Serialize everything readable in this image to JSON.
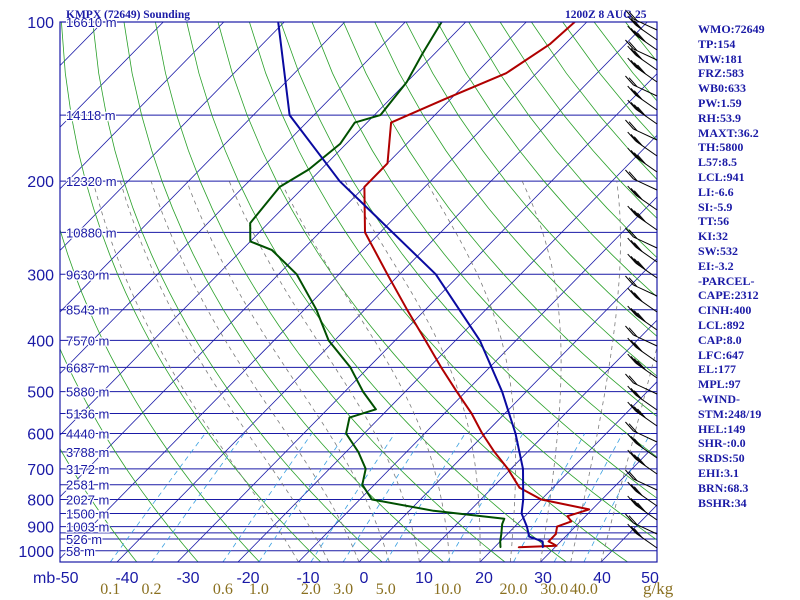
{
  "header": {
    "station": "KMPX (72649) Sounding",
    "time": "1200Z  8 AUG 25"
  },
  "stats": [
    "WMO:72649",
    "TP:154",
    "MW:181",
    "FRZ:583",
    "WB0:633",
    "PW:1.59",
    "RH:53.9",
    "MAXT:36.2",
    "TH:5800",
    "L57:8.5",
    "LCL:941",
    "LI:-6.6",
    "SI:-5.9",
    "TT:56",
    "KI:32",
    "SW:532",
    "EI:-3.2",
    "-PARCEL-",
    "CAPE:2312",
    "CINH:400",
    "LCL:892",
    "CAP:8.0",
    "LFC:647",
    "EL:177",
    "MPL:97",
    "-WIND-",
    "STM:248/19",
    "HEL:149",
    "SHR-:0.0",
    "SRDS:50",
    "EHI:3.1",
    "BRN:68.3",
    "BSHR:34"
  ],
  "colors": {
    "frame": "#1a1aa6",
    "isobar": "#1a1aa6",
    "isotherm": "#1a1aa6",
    "dry_adiabat": "#2aa02a",
    "moist_adiabat": "#7a7a7a",
    "mixing_ratio": "#3aa0e0",
    "temperature": "#b00000",
    "dewpoint": "#005000",
    "parcel": "#0a0aa0",
    "wind": "#000000",
    "axis_text": "#1a1aa6",
    "mixing_text": "#8a7020"
  },
  "chart_data": {
    "type": "line",
    "title": "KMPX (72649) Sounding",
    "subtitle": "1200Z  8 AUG 25",
    "xlabel": "",
    "ylabel": "mb",
    "y_log_scale": true,
    "xlim": [
      -50,
      50
    ],
    "ylim": [
      1050,
      100
    ],
    "y_ticks": [
      100,
      200,
      300,
      400,
      500,
      600,
      700,
      800,
      900,
      1000
    ],
    "x_ticks": [
      -50,
      -40,
      -30,
      -20,
      -10,
      0,
      10,
      20,
      30,
      40,
      50
    ],
    "x_tick_labels": [
      "-50",
      "-40",
      "-30",
      "-20",
      "-10",
      "0",
      "10",
      "20",
      "30",
      "40",
      "50"
    ],
    "mixing_ratio_unit": "g/kg",
    "mixing_ratio_labels": [
      "0.1",
      "0.2",
      "0.6",
      "1.0",
      "2.0",
      "3.0",
      "5.0",
      "10.0",
      "20.0",
      "30.0",
      "40.0"
    ],
    "isobar_pressures": [
      100,
      150,
      200,
      250,
      300,
      350,
      400,
      450,
      500,
      550,
      600,
      650,
      700,
      750,
      800,
      850,
      900,
      925,
      950,
      1000
    ],
    "height_labels": [
      {
        "p": 100,
        "label": "16610 m"
      },
      {
        "p": 150,
        "label": "14118 m"
      },
      {
        "p": 200,
        "label": "12320 m"
      },
      {
        "p": 250,
        "label": "10880 m"
      },
      {
        "p": 300,
        "label": "9630 m"
      },
      {
        "p": 350,
        "label": "8543 m"
      },
      {
        "p": 400,
        "label": "7570 m"
      },
      {
        "p": 450,
        "label": "6687 m"
      },
      {
        "p": 500,
        "label": "5880 m"
      },
      {
        "p": 550,
        "label": "5136 m"
      },
      {
        "p": 600,
        "label": "4440 m"
      },
      {
        "p": 650,
        "label": "3788 m"
      },
      {
        "p": 700,
        "label": "3172 m"
      },
      {
        "p": 750,
        "label": "2581 m"
      },
      {
        "p": 800,
        "label": "2027 m"
      },
      {
        "p": 850,
        "label": "1500 m"
      },
      {
        "p": 900,
        "label": "1003 m"
      },
      {
        "p": 950,
        "label": "526 m"
      },
      {
        "p": 1000,
        "label": "58 m"
      }
    ],
    "series": [
      {
        "name": "",
        "key": "temperature",
        "points": [
          {
            "p": 985,
            "t": 24.0
          },
          {
            "p": 978,
            "t": 30.0
          },
          {
            "p": 960,
            "t": 28.0
          },
          {
            "p": 930,
            "t": 28.0
          },
          {
            "p": 900,
            "t": 27.0
          },
          {
            "p": 880,
            "t": 28.5
          },
          {
            "p": 860,
            "t": 27.0
          },
          {
            "p": 835,
            "t": 29.5
          },
          {
            "p": 800,
            "t": 20.0
          },
          {
            "p": 760,
            "t": 14.5
          },
          {
            "p": 700,
            "t": 9.5
          },
          {
            "p": 650,
            "t": 4.5
          },
          {
            "p": 600,
            "t": -0.5
          },
          {
            "p": 550,
            "t": -5.5
          },
          {
            "p": 500,
            "t": -11.5
          },
          {
            "p": 450,
            "t": -18.0
          },
          {
            "p": 400,
            "t": -25.0
          },
          {
            "p": 350,
            "t": -33.0
          },
          {
            "p": 300,
            "t": -42.0
          },
          {
            "p": 250,
            "t": -52.5
          },
          {
            "p": 205,
            "t": -60.0
          },
          {
            "p": 185,
            "t": -60.0
          },
          {
            "p": 155,
            "t": -66.0
          },
          {
            "p": 140,
            "t": -61.0
          },
          {
            "p": 125,
            "t": -55.0
          },
          {
            "p": 110,
            "t": -52.5
          },
          {
            "p": 100,
            "t": -52.0
          }
        ]
      },
      {
        "name": "",
        "key": "dewpoint",
        "points": [
          {
            "p": 985,
            "t": 21.0
          },
          {
            "p": 960,
            "t": 20.0
          },
          {
            "p": 930,
            "t": 19.0
          },
          {
            "p": 890,
            "t": 17.5
          },
          {
            "p": 870,
            "t": 17.0
          },
          {
            "p": 840,
            "t": 4.0
          },
          {
            "p": 800,
            "t": -8.0
          },
          {
            "p": 750,
            "t": -12.0
          },
          {
            "p": 700,
            "t": -14.0
          },
          {
            "p": 650,
            "t": -18.0
          },
          {
            "p": 600,
            "t": -23.0
          },
          {
            "p": 560,
            "t": -25.0
          },
          {
            "p": 540,
            "t": -22.0
          },
          {
            "p": 500,
            "t": -27.0
          },
          {
            "p": 450,
            "t": -33.0
          },
          {
            "p": 400,
            "t": -41.0
          },
          {
            "p": 350,
            "t": -48.0
          },
          {
            "p": 300,
            "t": -57.0
          },
          {
            "p": 270,
            "t": -65.0
          },
          {
            "p": 260,
            "t": -70.0
          },
          {
            "p": 240,
            "t": -73.0
          },
          {
            "p": 205,
            "t": -74.0
          },
          {
            "p": 190,
            "t": -72.0
          },
          {
            "p": 170,
            "t": -71.0
          },
          {
            "p": 155,
            "t": -72.0
          },
          {
            "p": 150,
            "t": -69.0
          },
          {
            "p": 130,
            "t": -70.0
          },
          {
            "p": 115,
            "t": -72.0
          },
          {
            "p": 100,
            "t": -74.0
          }
        ]
      },
      {
        "name": "",
        "key": "parcel",
        "points": [
          {
            "p": 985,
            "t": 28.0
          },
          {
            "p": 960,
            "t": 27.0
          },
          {
            "p": 940,
            "t": 24.0
          },
          {
            "p": 900,
            "t": 22.0
          },
          {
            "p": 850,
            "t": 19.0
          },
          {
            "p": 800,
            "t": 17.0
          },
          {
            "p": 700,
            "t": 12.0
          },
          {
            "p": 600,
            "t": 5.0
          },
          {
            "p": 500,
            "t": -4.0
          },
          {
            "p": 400,
            "t": -16.0
          },
          {
            "p": 300,
            "t": -34.0
          },
          {
            "p": 200,
            "t": -65.0
          },
          {
            "p": 150,
            "t": -84.0
          },
          {
            "p": 100,
            "t": -101.0
          }
        ]
      }
    ]
  }
}
